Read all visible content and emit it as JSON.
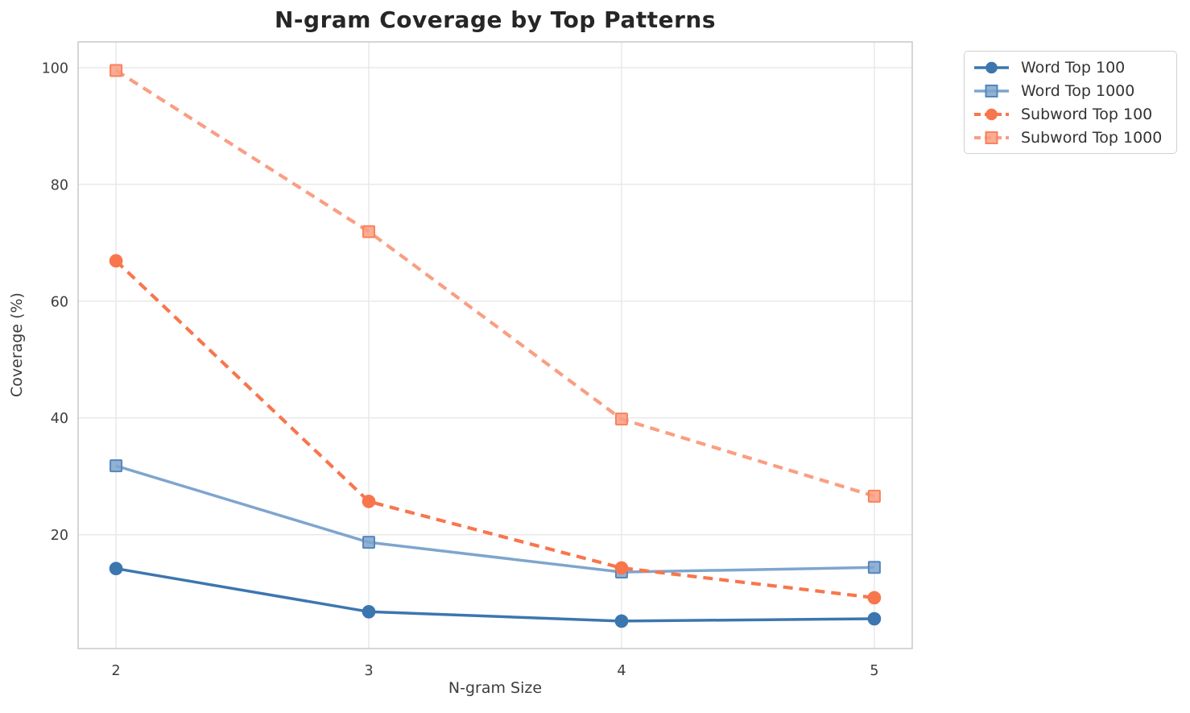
{
  "chart_data": {
    "type": "line",
    "title": "N-gram Coverage by Top Patterns",
    "xlabel": "N-gram Size",
    "ylabel": "Coverage (%)",
    "x": [
      2,
      3,
      4,
      5
    ],
    "xtick_labels": [
      "2",
      "3",
      "4",
      "5"
    ],
    "ytick_values": [
      20,
      40,
      60,
      80,
      100
    ],
    "ytick_labels": [
      "20",
      "40",
      "60",
      "80",
      "100"
    ],
    "xlim": [
      1.85,
      5.15
    ],
    "ylim": [
      0.5,
      104.4
    ],
    "grid": true,
    "legend_position": "outside upper right",
    "series": [
      {
        "name": "Word Top 100",
        "values": [
          14.2,
          6.8,
          5.2,
          5.6
        ],
        "color": "#3c76af",
        "edge": "#3c76af",
        "marker": "circle",
        "line": "solid"
      },
      {
        "name": "Word Top 1000",
        "values": [
          31.8,
          18.7,
          13.6,
          14.4
        ],
        "color": "#7fa5ce",
        "edge": "#5586ba",
        "marker": "square",
        "line": "solid"
      },
      {
        "name": "Subword Top 100",
        "values": [
          66.9,
          25.7,
          14.3,
          9.2
        ],
        "color": "#f8764c",
        "edge": "#f8764c",
        "marker": "circle",
        "line": "dashed"
      },
      {
        "name": "Subword Top 1000",
        "values": [
          99.5,
          71.9,
          39.8,
          26.6
        ],
        "color": "#fa9e82",
        "edge": "#f8825c",
        "marker": "square",
        "line": "dashed"
      }
    ],
    "colors": {
      "background": "#ffffff",
      "grid": "#e7e7ea",
      "spine": "#cccccc",
      "title_text": "#262626",
      "tick_text": "#3d3d3d"
    }
  }
}
